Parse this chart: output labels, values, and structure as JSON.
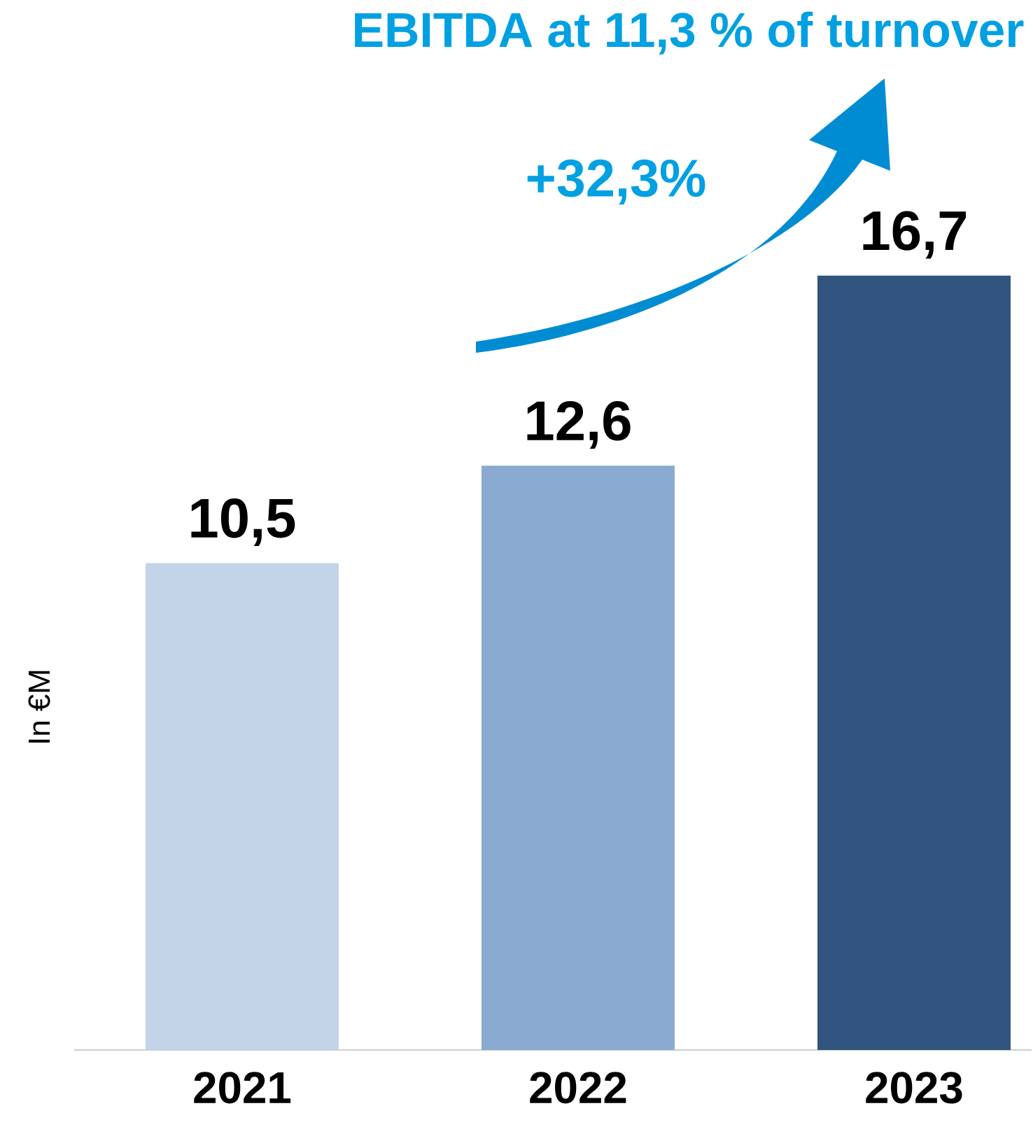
{
  "chart_data": {
    "type": "bar",
    "title": "EBITDA at 11,3 % of turnover",
    "ylabel": "In €M",
    "categories": [
      "2021",
      "2022",
      "2023"
    ],
    "values": [
      10.5,
      12.6,
      16.7
    ],
    "value_labels": [
      "10,5",
      "12,6",
      "16,7"
    ],
    "colors": [
      "#c3d4e8",
      "#8aaad2",
      "#30547e"
    ],
    "annotations": [
      "+32,3%"
    ]
  }
}
